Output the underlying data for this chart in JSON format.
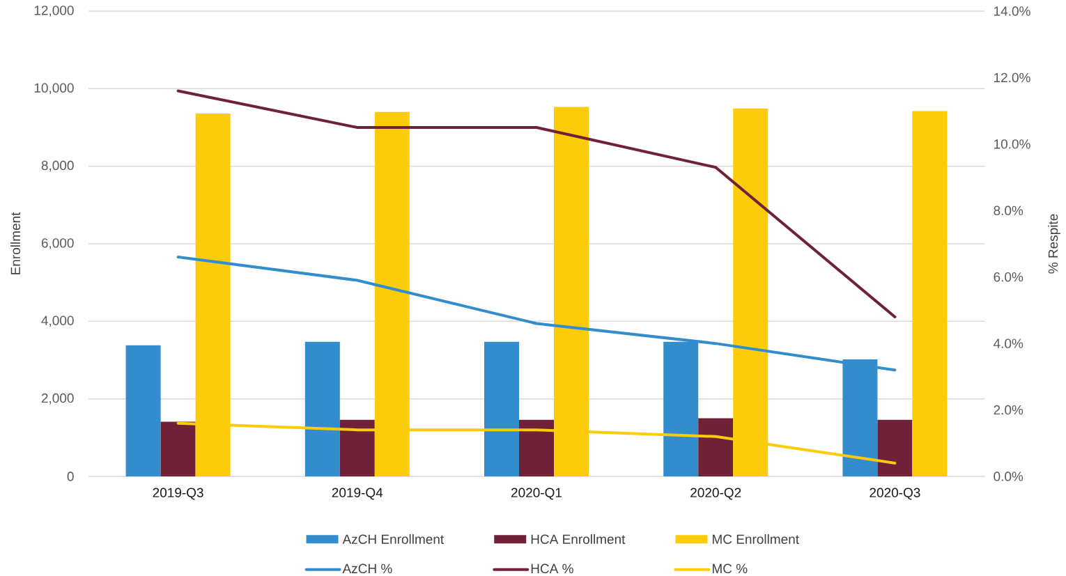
{
  "chart_data": {
    "type": "bar",
    "ylabel": "Enrollment",
    "y2label": "% Respite",
    "categories": [
      "2019-Q3",
      "2019-Q4",
      "2020-Q1",
      "2020-Q2",
      "2020-Q3"
    ],
    "series": [
      {
        "name": "AzCH Enrollment",
        "color": "#338dcd",
        "values": [
          3380,
          3470,
          3470,
          3470,
          3020
        ]
      },
      {
        "name": "HCA Enrollment",
        "color": "#6f2137",
        "values": [
          1410,
          1460,
          1460,
          1500,
          1460
        ]
      },
      {
        "name": "MC Enrollment",
        "color": "#fccb0a",
        "values": [
          9360,
          9400,
          9530,
          9490,
          9420
        ]
      },
      {
        "name": "AzCH %",
        "type": "line",
        "axis": "y2",
        "color": "#338dcd",
        "values": [
          6.6,
          5.9,
          4.6,
          4.0,
          3.2
        ]
      },
      {
        "name": "HCA %",
        "type": "line",
        "axis": "y2",
        "color": "#6f2137",
        "values": [
          11.6,
          10.5,
          10.5,
          9.3,
          4.8
        ]
      },
      {
        "name": "MC %",
        "type": "line",
        "axis": "y2",
        "color": "#fccb0a",
        "values": [
          1.6,
          1.4,
          1.4,
          1.2,
          0.4
        ]
      }
    ],
    "ylim": [
      0,
      12000
    ],
    "yticks": [
      0,
      {
        "value": 2000,
        "label": "2,000"
      },
      {
        "value": 4000,
        "label": "4,000"
      },
      {
        "value": 6000,
        "label": "6,000"
      },
      {
        "value": 8000,
        "label": "8,000"
      },
      {
        "value": 10000,
        "label": "10,000"
      },
      {
        "value": 12000,
        "label": "12,000"
      }
    ],
    "y2lim": [
      0,
      14
    ],
    "y2ticks": [
      {
        "value": 0,
        "label": "0.0%"
      },
      {
        "value": 2,
        "label": "2.0%"
      },
      {
        "value": 4,
        "label": "4.0%"
      },
      {
        "value": 6,
        "label": "6.0%"
      },
      {
        "value": 8,
        "label": "8.0%"
      },
      {
        "value": 10,
        "label": "10.0%"
      },
      {
        "value": 12,
        "label": "12.0%"
      },
      {
        "value": 14,
        "label": "14.0%"
      }
    ],
    "grid": "y",
    "legend": "bottom",
    "marker": "none",
    "line_style": "solid"
  }
}
